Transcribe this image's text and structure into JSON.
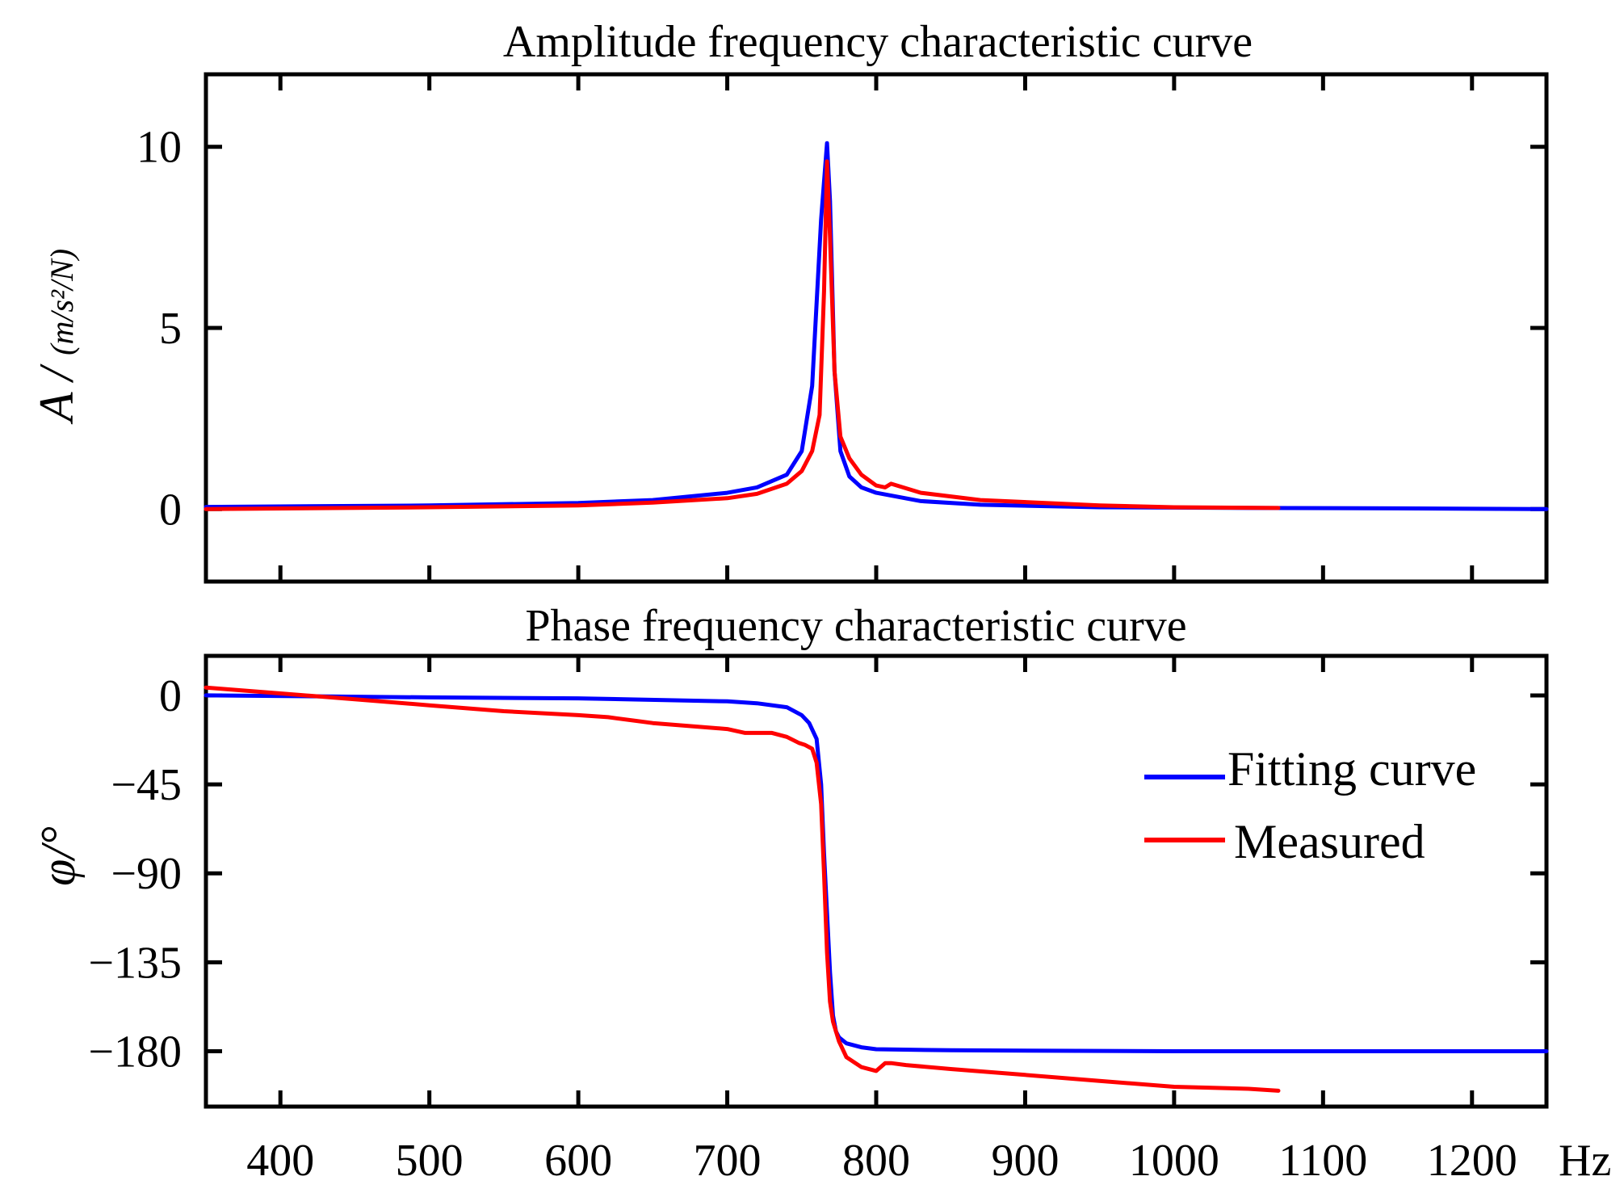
{
  "chart_data": [
    {
      "type": "line",
      "title": "Amplitude frequency characteristic curve",
      "xlabel": "",
      "ylabel": "A / (m/s²/N)",
      "ylabel_main": "A /",
      "ylabel_unit": "(m/s²/N)",
      "xlim": [
        350,
        1250
      ],
      "ylim": [
        -2,
        12
      ],
      "xticks": [
        400,
        500,
        600,
        700,
        800,
        900,
        1000,
        1100,
        1200
      ],
      "yticks": [
        0,
        5,
        10
      ],
      "ytick_labels": [
        "0",
        "5",
        "10"
      ],
      "grid": false,
      "series": [
        {
          "name": "Fitting curve",
          "color": "#0000ff",
          "x": [
            350,
            500,
            600,
            650,
            700,
            720,
            740,
            750,
            757,
            763,
            767,
            769,
            772,
            776,
            782,
            790,
            800,
            830,
            870,
            950,
            1050,
            1150,
            1250
          ],
          "y": [
            0.06,
            0.1,
            0.17,
            0.25,
            0.45,
            0.6,
            0.95,
            1.6,
            3.4,
            8.0,
            10.1,
            8.5,
            3.8,
            1.6,
            0.9,
            0.6,
            0.45,
            0.22,
            0.12,
            0.05,
            0.03,
            0.02,
            0.0
          ]
        },
        {
          "name": "Measured",
          "color": "#ff0000",
          "x": [
            350,
            500,
            600,
            650,
            700,
            720,
            740,
            750,
            757,
            762,
            765,
            767,
            769,
            772,
            776,
            782,
            790,
            800,
            806,
            810,
            830,
            870,
            950,
            1000,
            1070
          ],
          "y": [
            0.0,
            0.05,
            0.1,
            0.18,
            0.3,
            0.42,
            0.7,
            1.05,
            1.6,
            2.6,
            6.0,
            9.6,
            7.5,
            3.8,
            2.0,
            1.4,
            0.95,
            0.65,
            0.6,
            0.7,
            0.45,
            0.25,
            0.1,
            0.05,
            0.03
          ]
        }
      ]
    },
    {
      "type": "line",
      "title": "Phase frequency characteristic curve",
      "xlabel": "Hz",
      "ylabel": "φ/°",
      "xlim": [
        350,
        1250
      ],
      "ylim": [
        -208,
        20
      ],
      "xticks": [
        400,
        500,
        600,
        700,
        800,
        900,
        1000,
        1100,
        1200
      ],
      "xtick_labels": [
        "400",
        "500",
        "600",
        "700",
        "800",
        "900",
        "1000",
        "1100",
        "1200"
      ],
      "yticks": [
        0,
        -45,
        -90,
        -135,
        -180
      ],
      "ytick_labels": [
        "0",
        "−45",
        "−90",
        "−135",
        "−180"
      ],
      "grid": false,
      "legend_position": "center-right",
      "legend": [
        "Fitting curve",
        "Measured"
      ],
      "series": [
        {
          "name": "Fitting curve",
          "color": "#0000ff",
          "x": [
            350,
            500,
            600,
            700,
            720,
            740,
            750,
            755,
            760,
            763,
            765,
            767,
            769,
            771,
            773,
            775,
            780,
            790,
            800,
            850,
            1000,
            1250
          ],
          "y": [
            0,
            -1,
            -1.5,
            -3,
            -4,
            -6,
            -10,
            -14,
            -22,
            -45,
            -80,
            -110,
            -140,
            -162,
            -170,
            -173,
            -176,
            -178,
            -179,
            -179.5,
            -180,
            -180
          ]
        },
        {
          "name": "Measured",
          "color": "#ff0000",
          "x": [
            350,
            400,
            450,
            500,
            550,
            600,
            620,
            650,
            700,
            712,
            720,
            730,
            740,
            748,
            752,
            757,
            760,
            763,
            765,
            767,
            769,
            771,
            775,
            780,
            790,
            800,
            806,
            810,
            820,
            850,
            900,
            950,
            1000,
            1050,
            1070
          ],
          "y": [
            4,
            1,
            -2,
            -5,
            -8,
            -10,
            -11,
            -14,
            -17,
            -19,
            -19,
            -19,
            -21,
            -24,
            -25,
            -27,
            -34,
            -55,
            -90,
            -130,
            -155,
            -165,
            -175,
            -183,
            -188,
            -190,
            -186,
            -186,
            -187,
            -189,
            -192,
            -195,
            -198,
            -199,
            -200
          ]
        }
      ]
    }
  ]
}
